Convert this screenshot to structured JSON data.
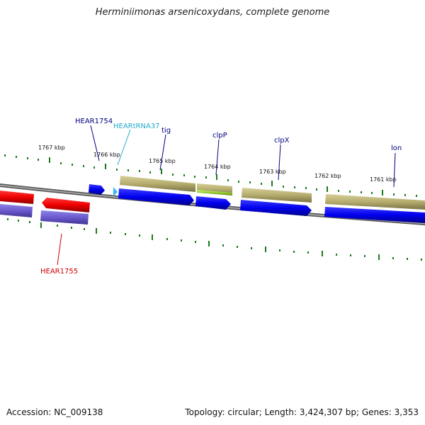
{
  "map": {
    "title": "Herminiimonas arsenicoxydans, complete genome",
    "accession_label": "Accession: NC_009138",
    "topology_label": "Topology: circular; Length: 3,424,307 bp; Genes: 3,353",
    "scale_labels": [
      "1767 kbp",
      "1766 kbp",
      "1765 kbp",
      "1764 kbp",
      "1763 kbp",
      "1762 kbp",
      "1761 kbp"
    ],
    "gene_labels": {
      "hear1754": "HEAR1754",
      "trna37": "HEARtRNA37",
      "tig": "tig",
      "clpP": "clpP",
      "clpX": "clpX",
      "lon": "lon",
      "hear1755": "HEAR1755"
    }
  },
  "colors": {
    "backbone": "#7a7a7a",
    "cds_blue": "#0000ee",
    "cds_red": "#ee0000",
    "cds_lavender": "#6a5acd",
    "cog_khaki": "#b5ac6e",
    "cog_green": "#9acd32",
    "trna_cyan": "#33bbee",
    "tick_green": "#1a7a1a",
    "label_navy": "#000080",
    "label_cyan": "#22aacc",
    "label_red": "#cc0000"
  }
}
